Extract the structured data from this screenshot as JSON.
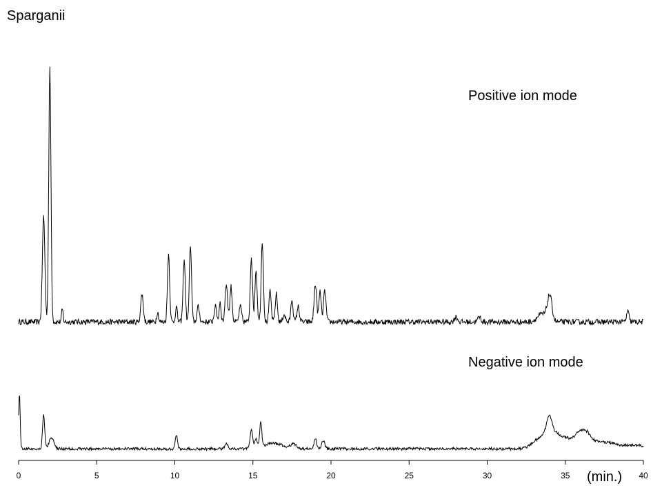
{
  "chart_data": {
    "type": "line",
    "title": "Sparganii",
    "xlabel": "(min.)",
    "xlim": [
      0,
      40
    ],
    "xticks": [
      0,
      5,
      10,
      15,
      20,
      25,
      30,
      35,
      40
    ],
    "grid": false,
    "series": [
      {
        "name": "Positive ion mode",
        "color": "#000000",
        "ylim": [
          0,
          100
        ],
        "baseline": 1,
        "peaks": [
          [
            1.6,
            42,
            0.08
          ],
          [
            2.0,
            100,
            0.07
          ],
          [
            2.8,
            5,
            0.05
          ],
          [
            7.9,
            11,
            0.08
          ],
          [
            8.9,
            4,
            0.06
          ],
          [
            9.6,
            27,
            0.07
          ],
          [
            10.1,
            6,
            0.06
          ],
          [
            10.6,
            25,
            0.07
          ],
          [
            11.0,
            30,
            0.07
          ],
          [
            11.5,
            6,
            0.08
          ],
          [
            12.6,
            6,
            0.08
          ],
          [
            12.9,
            8,
            0.06
          ],
          [
            13.3,
            15,
            0.08
          ],
          [
            13.6,
            14,
            0.07
          ],
          [
            14.2,
            6,
            0.08
          ],
          [
            14.9,
            26,
            0.07
          ],
          [
            15.2,
            21,
            0.07
          ],
          [
            15.6,
            32,
            0.07
          ],
          [
            16.1,
            12,
            0.07
          ],
          [
            16.5,
            11,
            0.07
          ],
          [
            17.0,
            3,
            0.08
          ],
          [
            17.5,
            9,
            0.07
          ],
          [
            17.9,
            6,
            0.08
          ],
          [
            19.0,
            15,
            0.08
          ],
          [
            19.3,
            12,
            0.07
          ],
          [
            19.6,
            12,
            0.08
          ],
          [
            28.0,
            2,
            0.1
          ],
          [
            29.5,
            2,
            0.1
          ],
          [
            33.5,
            3,
            0.3
          ],
          [
            34.0,
            10,
            0.15
          ],
          [
            39.0,
            4,
            0.08
          ]
        ]
      },
      {
        "name": "Negative ion mode",
        "color": "#000000",
        "ylim": [
          0,
          100
        ],
        "baseline": 6,
        "peaks": [
          [
            0.05,
            100,
            0.05
          ],
          [
            1.6,
            62,
            0.07
          ],
          [
            2.1,
            20,
            0.15
          ],
          [
            10.1,
            25,
            0.07
          ],
          [
            13.3,
            10,
            0.1
          ],
          [
            14.9,
            36,
            0.08
          ],
          [
            15.2,
            15,
            0.08
          ],
          [
            15.5,
            45,
            0.07
          ],
          [
            16.3,
            10,
            0.6
          ],
          [
            17.6,
            8,
            0.2
          ],
          [
            19.0,
            18,
            0.08
          ],
          [
            19.5,
            15,
            0.1
          ],
          [
            33.5,
            22,
            0.5
          ],
          [
            34.0,
            45,
            0.2
          ],
          [
            34.5,
            22,
            0.2
          ],
          [
            35.0,
            18,
            0.25
          ],
          [
            35.6,
            12,
            0.3
          ],
          [
            36.2,
            30,
            0.4
          ],
          [
            37.5,
            12,
            0.8
          ],
          [
            39.5,
            6,
            0.6
          ]
        ]
      }
    ]
  }
}
